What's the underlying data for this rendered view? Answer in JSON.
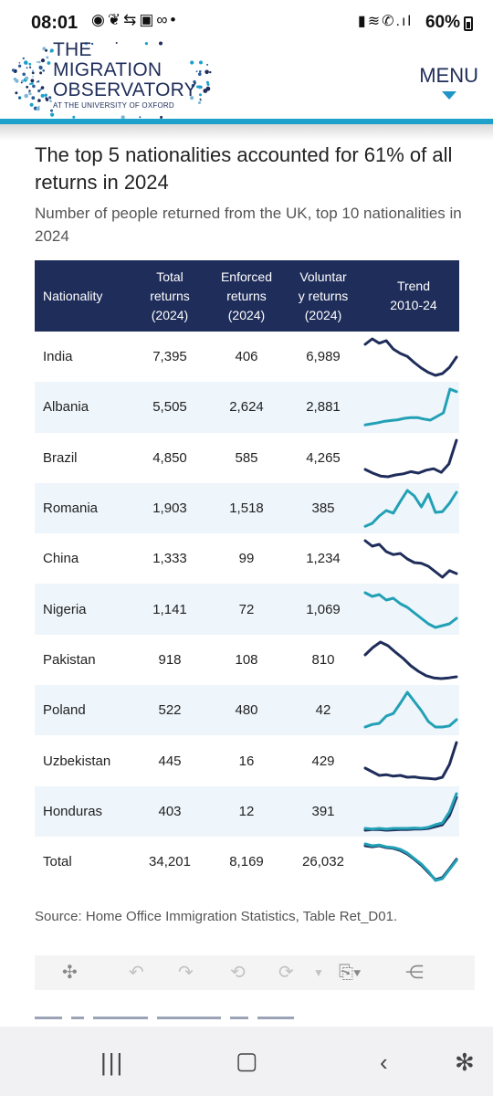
{
  "status_bar": {
    "time": "08:01",
    "notification_icons": [
      "messenger-icon",
      "leaf-icon",
      "sync-icon",
      "shopping-bag-icon",
      "voicemail-icon",
      "dot-icon"
    ],
    "system_icons": [
      "battery-saver-icon",
      "wifi-icon",
      "wifi-calling-icon",
      "signal-icon"
    ],
    "battery": "60%"
  },
  "header": {
    "logo_line1": "THE",
    "logo_line2": "MIGRATION",
    "logo_line3": "OBSERVATORY",
    "logo_line4": "AT THE UNIVERSITY OF OXFORD",
    "menu_label": "MENU",
    "accent_color": "#1da0c9",
    "brand_color": "#1f2d5a"
  },
  "article": {
    "title": "The top 5 nationalities accounted for 61% of all returns in 2024",
    "subtitle": "Number of people returned from the UK, top 10 nationalities in 2024",
    "source": "Source: Home Office Immigration Statistics, Table Ret_D01."
  },
  "table": {
    "headers": {
      "nationality": "Nationality",
      "total_1": "Total",
      "total_2": "returns",
      "total_3": "(2024)",
      "enforced_1": "Enforced",
      "enforced_2": "returns",
      "enforced_3": "(2024)",
      "voluntary_1": "Voluntar",
      "voluntary_2": "y returns",
      "voluntary_3": "(2024)",
      "trend_1": "Trend",
      "trend_2": "2010-24"
    },
    "rows": [
      {
        "nationality": "India",
        "total": "7,395",
        "enforced": "406",
        "voluntary": "6,989",
        "trend_color": "#1f2d5a",
        "trend": [
          0.85,
          1.0,
          0.88,
          0.95,
          0.72,
          0.6,
          0.52,
          0.35,
          0.2,
          0.08,
          0.0,
          0.05,
          0.22,
          0.5
        ]
      },
      {
        "nationality": "Albania",
        "total": "5,505",
        "enforced": "2,624",
        "voluntary": "2,881",
        "trend_color": "#22a0b5",
        "trend": [
          0.02,
          0.05,
          0.08,
          0.12,
          0.14,
          0.16,
          0.2,
          0.22,
          0.22,
          0.18,
          0.15,
          0.25,
          0.35,
          1.0,
          0.93
        ]
      },
      {
        "nationality": "Brazil",
        "total": "4,850",
        "enforced": "585",
        "voluntary": "4,265",
        "trend_color": "#1f2d5a",
        "trend": [
          0.2,
          0.1,
          0.02,
          0.0,
          0.05,
          0.08,
          0.14,
          0.1,
          0.18,
          0.22,
          0.12,
          0.35,
          1.0
        ]
      },
      {
        "nationality": "Romania",
        "total": "1,903",
        "enforced": "1,518",
        "voluntary": "385",
        "trend_color": "#22a0b5",
        "trend": [
          0.02,
          0.1,
          0.3,
          0.45,
          0.38,
          0.7,
          1.0,
          0.85,
          0.55,
          0.9,
          0.4,
          0.42,
          0.65,
          0.95
        ]
      },
      {
        "nationality": "China",
        "total": "1,333",
        "enforced": "99",
        "voluntary": "1,234",
        "trend_color": "#1f2d5a",
        "trend": [
          1.0,
          0.85,
          0.9,
          0.7,
          0.62,
          0.65,
          0.5,
          0.4,
          0.38,
          0.3,
          0.15,
          0.0,
          0.18,
          0.1
        ]
      },
      {
        "nationality": "Nigeria",
        "total": "1,141",
        "enforced": "72",
        "voluntary": "1,069",
        "trend_color": "#22a0b5",
        "trend": [
          0.95,
          0.85,
          0.9,
          0.75,
          0.8,
          0.65,
          0.55,
          0.4,
          0.25,
          0.1,
          0.0,
          0.05,
          0.1,
          0.25
        ]
      },
      {
        "nationality": "Pakistan",
        "total": "918",
        "enforced": "108",
        "voluntary": "810",
        "trend_color": "#1f2d5a",
        "trend": [
          0.65,
          0.85,
          1.0,
          0.9,
          0.72,
          0.55,
          0.35,
          0.2,
          0.08,
          0.02,
          0.0,
          0.02,
          0.05
        ]
      },
      {
        "nationality": "Poland",
        "total": "522",
        "enforced": "480",
        "voluntary": "42",
        "trend_color": "#22a0b5",
        "trend": [
          0.05,
          0.12,
          0.15,
          0.35,
          0.42,
          0.7,
          1.0,
          0.75,
          0.5,
          0.2,
          0.05,
          0.05,
          0.08,
          0.25
        ]
      },
      {
        "nationality": "Uzbekistan",
        "total": "445",
        "enforced": "16",
        "voluntary": "429",
        "trend_color": "#1f2d5a",
        "trend": [
          0.3,
          0.2,
          0.1,
          0.12,
          0.08,
          0.1,
          0.05,
          0.06,
          0.03,
          0.02,
          0.0,
          0.05,
          0.4,
          1.0
        ]
      },
      {
        "nationality": "Honduras",
        "total": "403",
        "enforced": "12",
        "voluntary": "391",
        "trend_color": "#22a0b5",
        "trend_color_2": "#1f2d5a",
        "trend": [
          0.05,
          0.03,
          0.05,
          0.03,
          0.05,
          0.05,
          0.05,
          0.06,
          0.05,
          0.08,
          0.15,
          0.2,
          0.5,
          1.0
        ],
        "trend_2": [
          0.0,
          0.02,
          0.02,
          0.0,
          0.01,
          0.02,
          0.02,
          0.03,
          0.03,
          0.05,
          0.1,
          0.15,
          0.4,
          0.9
        ]
      },
      {
        "nationality": "Total",
        "total": "34,201",
        "enforced": "8,169",
        "voluntary": "26,032",
        "trend_color": "#22a0b5",
        "trend_color_2": "#1f2d5a",
        "trend": [
          1.0,
          0.95,
          0.97,
          0.92,
          0.9,
          0.85,
          0.75,
          0.6,
          0.45,
          0.25,
          0.0,
          0.05,
          0.3,
          0.55
        ],
        "trend_2": [
          0.95,
          0.92,
          0.95,
          0.9,
          0.88,
          0.82,
          0.72,
          0.58,
          0.42,
          0.22,
          0.02,
          0.08,
          0.32,
          0.58
        ]
      }
    ]
  },
  "toolbar": {
    "icons": [
      "tableau-icon",
      "undo-icon",
      "redo-icon",
      "revert-icon",
      "refresh-icon",
      "caret-down-icon",
      "download-icon",
      "share-icon"
    ]
  },
  "nav_bar": {
    "icons": [
      "recent-apps-icon",
      "home-icon",
      "back-icon",
      "accessibility-icon"
    ]
  }
}
